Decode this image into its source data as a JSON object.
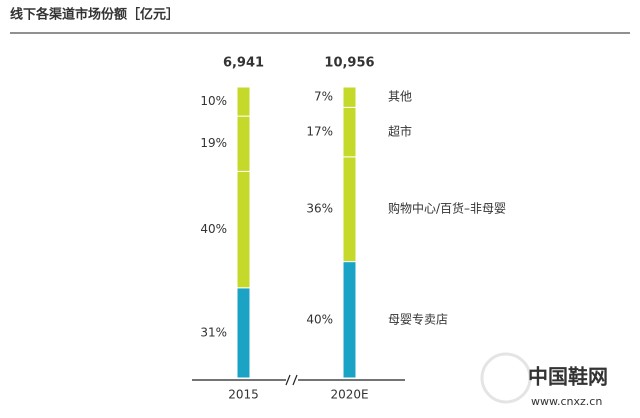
{
  "chart_data": {
    "type": "stacked-bar",
    "title": "线下各渠道市场份额［亿元］",
    "categories": [
      "2015",
      "2020E"
    ],
    "totals": [
      {
        "value": 6941,
        "label": "6,941"
      },
      {
        "value": 10956,
        "label": "10,956"
      }
    ],
    "series": [
      {
        "name": "母婴专卖店",
        "color": "#1ba3c6",
        "values": [
          31,
          40
        ],
        "value_labels": [
          "31%",
          "40%"
        ]
      },
      {
        "name": "购物中心/百货–非母婴",
        "color": "#c5d92a",
        "values": [
          40,
          36
        ],
        "value_labels": [
          "40%",
          "36%"
        ]
      },
      {
        "name": "超市",
        "color": "#c5d92a",
        "values": [
          19,
          17
        ],
        "value_labels": [
          "19%",
          "17%"
        ]
      },
      {
        "name": "其他",
        "color": "#c5d92a",
        "values": [
          10,
          7
        ],
        "value_labels": [
          "10%",
          "7%"
        ]
      }
    ],
    "watermark": [
      "中国鞋网",
      "www.cnxz.cn"
    ]
  }
}
